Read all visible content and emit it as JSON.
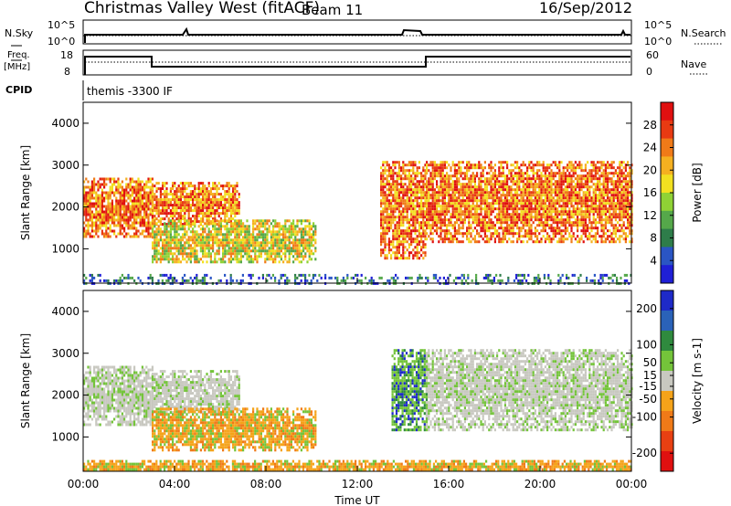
{
  "header": {
    "title": "Christmas Valley West (fitACF)",
    "beam": "Beam 11",
    "date": "16/Sep/2012"
  },
  "aux_panels": {
    "nsky_label": "N.Sky",
    "nsky_ticks": [
      "10^5",
      "10^0"
    ],
    "nsearch_label": "N.Search",
    "nsearch_ticks": [
      "10^5",
      "10^0"
    ],
    "freq_label": "Freq.",
    "freq_unit": "[MHz]",
    "freq_ticks": [
      "18",
      "8"
    ],
    "nave_label": "Nave",
    "nave_ticks": [
      "60",
      "0"
    ],
    "cpid_label": "CPID",
    "cpid_text": "themis -3300 IF"
  },
  "chart_data": [
    {
      "type": "heatmap",
      "title": "",
      "xlabel": "Time UT",
      "ylabel": "Slant Range [km]",
      "x_ticks": [
        "00:00",
        "04:00",
        "08:00",
        "12:00",
        "16:00",
        "20:00",
        "00:00"
      ],
      "x_range_hours": [
        0,
        24
      ],
      "y_ticks": [
        1000,
        2000,
        3000,
        4000
      ],
      "ylim": [
        180,
        4500
      ],
      "colorbar": {
        "label": "Power [dB]",
        "ticks": [
          4,
          8,
          12,
          16,
          20,
          24,
          28
        ],
        "range": [
          0,
          32
        ],
        "colors": [
          "#1f1fd6",
          "#2a55c4",
          "#2e7d4a",
          "#55a84a",
          "#8fd235",
          "#f2e020",
          "#f5b020",
          "#f07a18",
          "#e83a12",
          "#e01010"
        ]
      },
      "features": [
        {
          "t_start": 0.0,
          "t_end": 3.0,
          "r_low": 1300,
          "r_high": 2700,
          "level": "strong"
        },
        {
          "t_start": 3.0,
          "t_end": 6.8,
          "r_low": 1600,
          "r_high": 2600,
          "level": "strong"
        },
        {
          "t_start": 3.0,
          "t_end": 10.2,
          "r_low": 700,
          "r_high": 1700,
          "level": "moderate"
        },
        {
          "t_start": 13.0,
          "t_end": 15.0,
          "r_low": 800,
          "r_high": 3100,
          "level": "strong"
        },
        {
          "t_start": 15.0,
          "t_end": 24.0,
          "r_low": 1200,
          "r_high": 3100,
          "level": "strong"
        },
        {
          "t_start": 0.0,
          "t_end": 24.0,
          "r_low": 200,
          "r_high": 400,
          "level": "weak"
        }
      ]
    },
    {
      "type": "heatmap",
      "title": "",
      "xlabel": "Time UT",
      "ylabel": "Slant Range [km]",
      "x_ticks": [
        "00:00",
        "04:00",
        "08:00",
        "12:00",
        "16:00",
        "20:00",
        "00:00"
      ],
      "x_range_hours": [
        0,
        24
      ],
      "y_ticks": [
        1000,
        2000,
        3000,
        4000
      ],
      "ylim": [
        180,
        4500
      ],
      "colorbar": {
        "label": "Velocity [m s-1]",
        "ticks": [
          200,
          100,
          50,
          15,
          -15,
          -50,
          -100,
          -200
        ],
        "range": [
          -250,
          250
        ],
        "colors": [
          "#1e2ac8",
          "#2a62b8",
          "#2f8a3e",
          "#74c43a",
          "#c8c8c0",
          "#f5a31a",
          "#f07a18",
          "#e84012",
          "#e01010"
        ]
      },
      "features": [
        {
          "t_start": 0.0,
          "t_end": 3.0,
          "r_low": 1300,
          "r_high": 2700,
          "velocity": "near-zero"
        },
        {
          "t_start": 3.0,
          "t_end": 6.8,
          "r_low": 1600,
          "r_high": 2600,
          "velocity": "near-zero"
        },
        {
          "t_start": 3.0,
          "t_end": 10.2,
          "r_low": 700,
          "r_high": 1700,
          "velocity": "negative"
        },
        {
          "t_start": 13.5,
          "t_end": 15.0,
          "r_low": 1200,
          "r_high": 3100,
          "velocity": "positive"
        },
        {
          "t_start": 15.0,
          "t_end": 24.0,
          "r_low": 1200,
          "r_high": 3100,
          "velocity": "near-zero"
        },
        {
          "t_start": 0.0,
          "t_end": 24.0,
          "r_low": 200,
          "r_high": 450,
          "velocity": "negative"
        }
      ]
    }
  ]
}
